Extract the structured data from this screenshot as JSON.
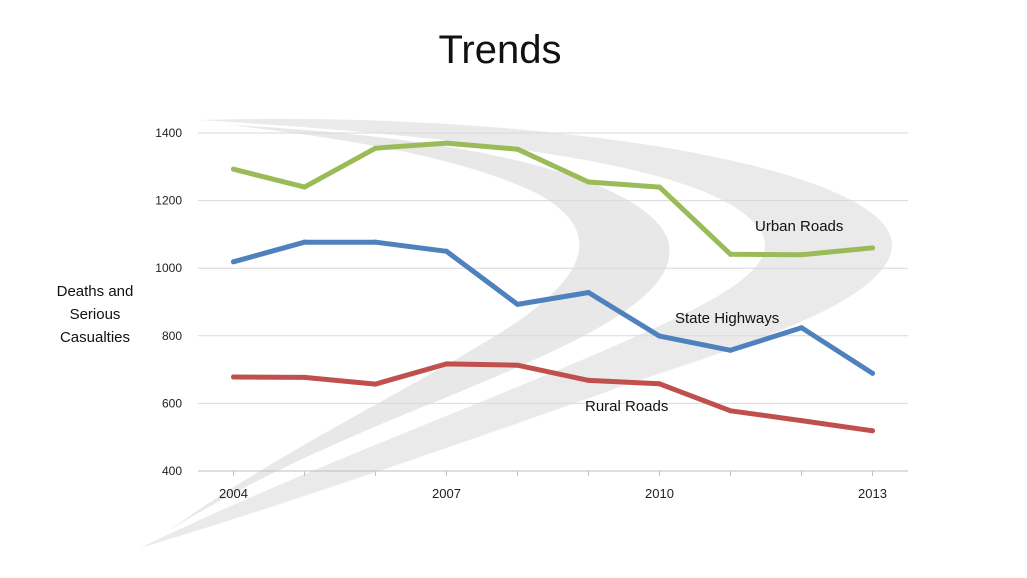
{
  "slide": {
    "title": "Trends"
  },
  "colors": {
    "urban": "#9bbb59",
    "state": "#4f81bd",
    "rural": "#c0504d",
    "grid": "#d9d9d9",
    "swoosh": "#d8d8d8"
  },
  "chart_data": {
    "type": "line",
    "title": "Trends",
    "xlabel": "",
    "ylabel": "Deaths and Serious Casualties",
    "ylabel_lines": [
      "Deaths and",
      "Serious",
      "Casualties"
    ],
    "x": [
      2004,
      2005,
      2006,
      2007,
      2008,
      2009,
      2010,
      2011,
      2012,
      2013
    ],
    "xlim": [
      2003.5,
      2013.5
    ],
    "ylim": [
      400,
      1400
    ],
    "yticks": [
      400,
      600,
      800,
      1000,
      1200,
      1400
    ],
    "xtick_labels": [
      "2004",
      "2007",
      "2010",
      "2013"
    ],
    "grid": true,
    "legend": "none",
    "series": [
      {
        "key": "urban",
        "name": "Urban Roads",
        "label": "Urban Roads",
        "values": [
          1293,
          1240,
          1355,
          1370,
          1352,
          1255,
          1240,
          1041,
          1040,
          1060
        ]
      },
      {
        "key": "state",
        "name": "State Highways",
        "label": "State Highways",
        "values": [
          1019,
          1077,
          1077,
          1050,
          893,
          928,
          799,
          757,
          824,
          689
        ]
      },
      {
        "key": "rural",
        "name": "Rural Roads",
        "label": "Rural Roads",
        "values": [
          678,
          677,
          657,
          717,
          713,
          668,
          658,
          578,
          549,
          519
        ]
      }
    ]
  }
}
